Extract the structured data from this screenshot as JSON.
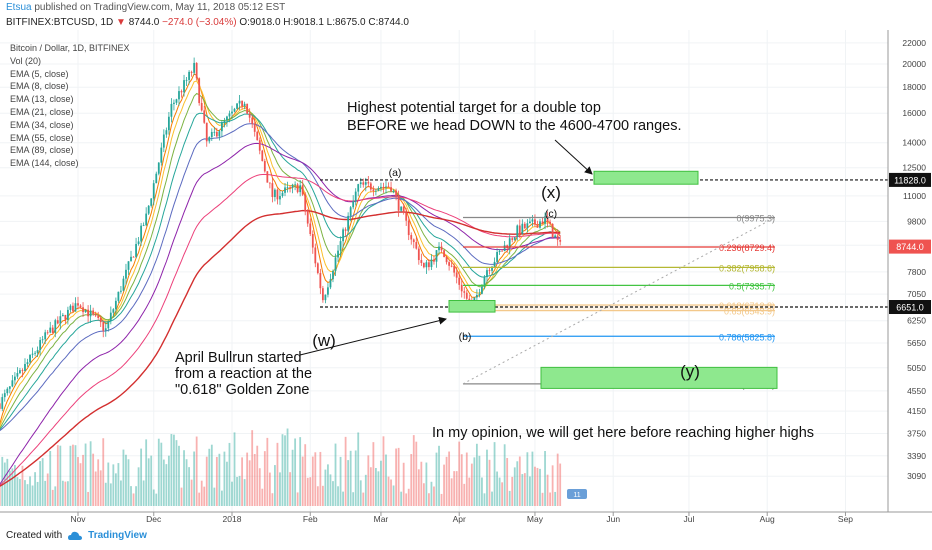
{
  "header": {
    "author": "Etsua",
    "published": "published on TradingView.com, May 11, 2018 05:12 EST",
    "symbol": "BITFINEX:BTCUSD, 1D",
    "last": "8744.0",
    "change": "−274.0 (−3.04%)",
    "ohlc": "O:9018.0 H:9018.1 L:8675.0 C:8744.0"
  },
  "legend": [
    "Bitcoin / Dollar, 1D, BITFINEX",
    "Vol (20)",
    "EMA (5, close)",
    "EMA (8, close)",
    "EMA (13, close)",
    "EMA (21, close)",
    "EMA (34, close)",
    "EMA (55, close)",
    "EMA (89, close)",
    "EMA (144, close)"
  ],
  "footer": {
    "created": "Created with",
    "brand": "TradingView"
  },
  "colors": {
    "up": "#26a69a",
    "down": "#ef5350",
    "fib_gray": "#888888",
    "fib_red": "#e53935",
    "fib_olive": "#b5b833",
    "fib_green": "#43c443",
    "fib_orange": "#f3c98b",
    "fib_blue": "#2196f3",
    "box": "#8ee88e",
    "ema144": "#d32f2f"
  },
  "chart_data": {
    "type": "candlestick",
    "y_axis_ticks": [
      3090,
      3390,
      3750,
      4150,
      4550,
      5050,
      5650,
      6250,
      7050,
      7800,
      8800,
      9800,
      11000,
      12500,
      14000,
      16000,
      18000,
      20000,
      22000
    ],
    "ylim": [
      2800,
      22700
    ],
    "x_axis_labels": [
      "Nov",
      "Dec",
      "2018",
      "Feb",
      "Mar",
      "Apr",
      "May",
      "Jun",
      "Jul",
      "Aug",
      "Sep"
    ],
    "x_dates": [
      "2017-11-01",
      "2017-12-01",
      "2018-01-01",
      "2018-02-01",
      "2018-03-01",
      "2018-04-01",
      "2018-05-01",
      "2018-06-01",
      "2018-07-01",
      "2018-08-01",
      "2018-09-01"
    ],
    "price_path": [
      [
        "2017-10-01",
        4300
      ],
      [
        "2017-10-20",
        5900
      ],
      [
        "2017-11-01",
        6800
      ],
      [
        "2017-11-12",
        6000
      ],
      [
        "2017-11-28",
        10000
      ],
      [
        "2017-12-08",
        16500
      ],
      [
        "2017-12-17",
        19700
      ],
      [
        "2017-12-22",
        14000
      ],
      [
        "2018-01-06",
        17000
      ],
      [
        "2018-01-17",
        11000
      ],
      [
        "2018-01-28",
        11500
      ],
      [
        "2018-02-06",
        6900
      ],
      [
        "2018-02-20",
        11500
      ],
      [
        "2018-03-05",
        11500
      ],
      [
        "2018-03-18",
        7900
      ],
      [
        "2018-03-25",
        8700
      ],
      [
        "2018-04-06",
        6600
      ],
      [
        "2018-04-12",
        7900
      ],
      [
        "2018-04-24",
        9400
      ],
      [
        "2018-05-05",
        9900
      ],
      [
        "2018-05-11",
        8744
      ]
    ],
    "price_labels": [
      {
        "value": 11828.0,
        "text": "11828.0"
      },
      {
        "value": 8744.0,
        "text": "8744.0"
      },
      {
        "value": 6651.0,
        "text": "6651.0"
      }
    ],
    "fib_levels": [
      {
        "ratio": "0",
        "price": 9975.3,
        "label": "0(9975.3)"
      },
      {
        "ratio": "0.236",
        "price": 8729.4,
        "label": "0.236(8729.4)"
      },
      {
        "ratio": "0.382",
        "price": 7958.6,
        "label": "0.382(7958.6)"
      },
      {
        "ratio": "0.5",
        "price": 7335.7,
        "label": "0.5(7335.7)"
      },
      {
        "ratio": "0.618",
        "price": 6712.8,
        "label": "0.618(6712.8)"
      },
      {
        "ratio": "0.65",
        "price": 6543.9,
        "label": "0.65(6543.9)"
      },
      {
        "ratio": "0.786",
        "price": 5825.8,
        "label": "0.786(5825.8)"
      },
      {
        "ratio": "1",
        "price": 4696.0,
        "label": "1(4696.0)"
      }
    ],
    "annotations": {
      "top_text_1": "Highest potential target for a double top",
      "top_text_2": "BEFORE we head DOWN to the 4600-4700 ranges.",
      "left_text_1": "April Bullrun started",
      "left_text_2": "from a reaction at the",
      "left_text_3": "\"0.618\" Golden Zone",
      "bottom_text": "In my opinion, we will get here before reaching higher highs",
      "wave_a": "(a)",
      "wave_b": "(b)",
      "wave_c": "(c)",
      "wave_w": "(w)",
      "wave_x": "(x)",
      "wave_y": "(y)"
    },
    "event_badge": "11"
  }
}
